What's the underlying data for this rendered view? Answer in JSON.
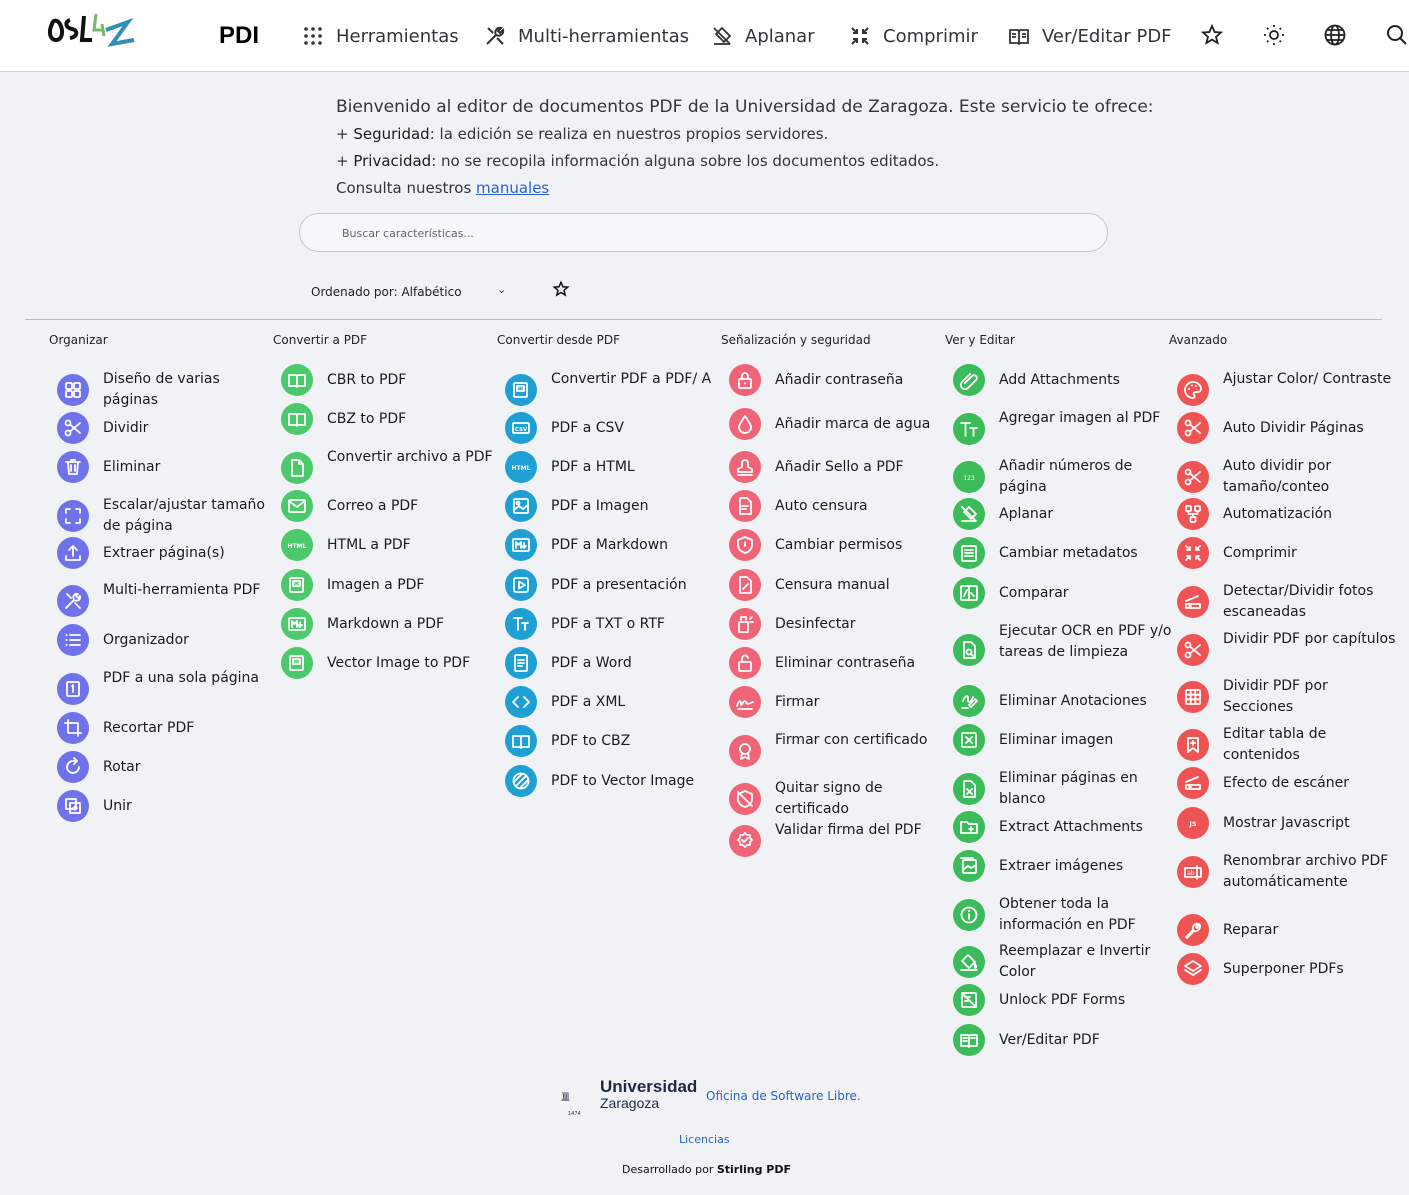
{
  "navbar": {
    "brand": "PDI",
    "items": [
      {
        "label": "Herramientas",
        "icon": "grid-dots-icon"
      },
      {
        "label": "Multi-herramientas",
        "icon": "tools-icon"
      },
      {
        "label": "Aplanar",
        "icon": "flatten-icon"
      },
      {
        "label": "Comprimir",
        "icon": "compress-icon"
      },
      {
        "label": "Ver/Editar PDF",
        "icon": "book-icon"
      }
    ],
    "right_icons": [
      "star-icon",
      "sun-icon",
      "globe-icon",
      "search-icon"
    ]
  },
  "welcome": {
    "intro": "Bienvenido al editor de documentos PDF de la Universidad de Zaragoza. Este servicio te ofrece:",
    "point1_bold": "Seguridad",
    "point1_rest": ": la edición se realiza en nuestros propios servidores.",
    "point2_bold": "Privacidad",
    "point2_rest": ": no se recopila información alguna sobre los documentos editados.",
    "manual_prefix": "Consulta nuestros ",
    "manual_link": "manuales",
    "plus": "+ "
  },
  "search": {
    "placeholder": "Buscar características..."
  },
  "sort": {
    "label": "Ordenado por: Alfabético"
  },
  "columns": [
    {
      "title": "Organizar",
      "color": "#6f72e8",
      "items": [
        {
          "label": "Diseño de varias páginas",
          "icon": "layout-icon"
        },
        {
          "label": "Dividir",
          "icon": "scissors-icon"
        },
        {
          "label": "Eliminar",
          "icon": "trash-icon"
        },
        {
          "label": "Escalar/ajustar tamaño de página",
          "icon": "scale-icon"
        },
        {
          "label": "Extraer página(s)",
          "icon": "upload-icon"
        },
        {
          "label": "Multi-herramienta PDF",
          "icon": "tools-icon"
        },
        {
          "label": "Organizador",
          "icon": "list-icon"
        },
        {
          "label": "PDF a una sola página",
          "icon": "single-page-icon"
        },
        {
          "label": "Recortar PDF",
          "icon": "crop-icon"
        },
        {
          "label": "Rotar",
          "icon": "rotate-icon"
        },
        {
          "label": "Unir",
          "icon": "merge-icon"
        }
      ]
    },
    {
      "title": "Convertir a PDF",
      "color": "#4cc96b",
      "items": [
        {
          "label": "CBR to PDF",
          "icon": "book-open-icon"
        },
        {
          "label": "CBZ to PDF",
          "icon": "book-open-icon"
        },
        {
          "label": "Convertir archivo a PDF",
          "icon": "file-icon"
        },
        {
          "label": "Correo a PDF",
          "icon": "mail-icon"
        },
        {
          "label": "HTML a PDF",
          "icon": "html-icon"
        },
        {
          "label": "Imagen a PDF",
          "icon": "pdf-file-icon"
        },
        {
          "label": "Markdown a PDF",
          "icon": "markdown-icon"
        },
        {
          "label": "Vector Image to PDF",
          "icon": "pdf-file-icon"
        }
      ]
    },
    {
      "title": "Convertir desde PDF",
      "color": "#1ea0d4",
      "items": [
        {
          "label": "Convertir PDF a PDF/ A",
          "icon": "pdf-file-icon"
        },
        {
          "label": "PDF a CSV",
          "icon": "csv-icon"
        },
        {
          "label": "PDF a HTML",
          "icon": "html-icon"
        },
        {
          "label": "PDF a Imagen",
          "icon": "image-icon"
        },
        {
          "label": "PDF a Markdown",
          "icon": "markdown-icon"
        },
        {
          "label": "PDF a presentación",
          "icon": "slides-icon"
        },
        {
          "label": "PDF a TXT o RTF",
          "icon": "text-icon"
        },
        {
          "label": "PDF a Word",
          "icon": "document-icon"
        },
        {
          "label": "PDF a XML",
          "icon": "code-icon"
        },
        {
          "label": "PDF to CBZ",
          "icon": "book-open-icon"
        },
        {
          "label": "PDF to Vector Image",
          "icon": "vector-icon"
        }
      ]
    },
    {
      "title": "Señalización y seguridad",
      "color": "#f06478",
      "items": [
        {
          "label": "Añadir contraseña",
          "icon": "lock-icon"
        },
        {
          "label": "Añadir marca de agua",
          "icon": "droplet-icon"
        },
        {
          "label": "Añadir Sello a PDF",
          "icon": "stamp-icon"
        },
        {
          "label": "Auto censura",
          "icon": "redact-icon"
        },
        {
          "label": "Cambiar permisos",
          "icon": "shield-icon"
        },
        {
          "label": "Censura manual",
          "icon": "edit-file-icon"
        },
        {
          "label": "Desinfectar",
          "icon": "sanitize-icon"
        },
        {
          "label": "Eliminar contraseña",
          "icon": "unlock-icon"
        },
        {
          "label": "Firmar",
          "icon": "signature-icon"
        },
        {
          "label": "Firmar con certificado",
          "icon": "certificate-icon"
        },
        {
          "label": "Quitar signo de certificado",
          "icon": "shield-off-icon"
        },
        {
          "label": "Validar firma del PDF",
          "icon": "verified-icon"
        }
      ]
    },
    {
      "title": "Ver y Editar",
      "color": "#3cbb5a",
      "items": [
        {
          "label": "Add Attachments",
          "icon": "attachment-icon"
        },
        {
          "label": "Agregar imagen al PDF",
          "icon": "text-format-icon"
        },
        {
          "label": "Añadir números de página",
          "icon": "numbers-icon"
        },
        {
          "label": "Aplanar",
          "icon": "flatten-icon"
        },
        {
          "label": "Cambiar metadatos",
          "icon": "metadata-icon"
        },
        {
          "label": "Comparar",
          "icon": "compare-icon"
        },
        {
          "label": "Ejecutar OCR en PDF y/o tareas de limpieza",
          "icon": "ocr-icon"
        },
        {
          "label": "Eliminar Anotaciones",
          "icon": "ink-eraser-icon"
        },
        {
          "label": "Eliminar imagen",
          "icon": "image-remove-icon"
        },
        {
          "label": "Eliminar páginas en blanco",
          "icon": "page-remove-icon"
        },
        {
          "label": "Extract Attachments",
          "icon": "folder-icon"
        },
        {
          "label": "Extraer imágenes",
          "icon": "images-icon"
        },
        {
          "label": "Obtener toda la información en PDF",
          "icon": "info-icon"
        },
        {
          "label": "Reemplazar e Invertir Color",
          "icon": "paint-bucket-icon"
        },
        {
          "label": "Unlock PDF Forms",
          "icon": "form-unlock-icon"
        },
        {
          "label": "Ver/Editar PDF",
          "icon": "book-icon"
        }
      ]
    },
    {
      "title": "Avanzado",
      "color": "#ef5454",
      "items": [
        {
          "label": "Ajustar Color/ Contraste",
          "icon": "palette-icon"
        },
        {
          "label": "Auto Dividir Páginas",
          "icon": "scissors-icon"
        },
        {
          "label": "Auto dividir por tamaño/conteo",
          "icon": "scissors-icon"
        },
        {
          "label": "Automatización",
          "icon": "workflow-icon"
        },
        {
          "label": "Comprimir",
          "icon": "compress-icon"
        },
        {
          "label": "Detectar/Dividir fotos escaneadas",
          "icon": "scanner-icon"
        },
        {
          "label": "Dividir PDF por capítulos",
          "icon": "scissors-icon"
        },
        {
          "label": "Dividir PDF por Secciones",
          "icon": "grid-icon"
        },
        {
          "label": "Editar tabla de contenidos",
          "icon": "bookmark-icon"
        },
        {
          "label": "Efecto de escáner",
          "icon": "scanner-icon"
        },
        {
          "label": "Mostrar Javascript",
          "icon": "js-icon"
        },
        {
          "label": "Renombrar archivo PDF automáticamente",
          "icon": "rename-icon"
        },
        {
          "label": "Reparar",
          "icon": "wrench-icon"
        },
        {
          "label": "Superponer PDFs",
          "icon": "layers-icon"
        }
      ]
    }
  ],
  "footer": {
    "uni_name": "Universidad",
    "uni_city": "Zaragoza",
    "uni_year": "1474",
    "office": "Oficina de Software Libre.",
    "licenses": "Licencias",
    "developed_prefix": "Desarrollado por ",
    "developed_by": "Stirling PDF"
  }
}
